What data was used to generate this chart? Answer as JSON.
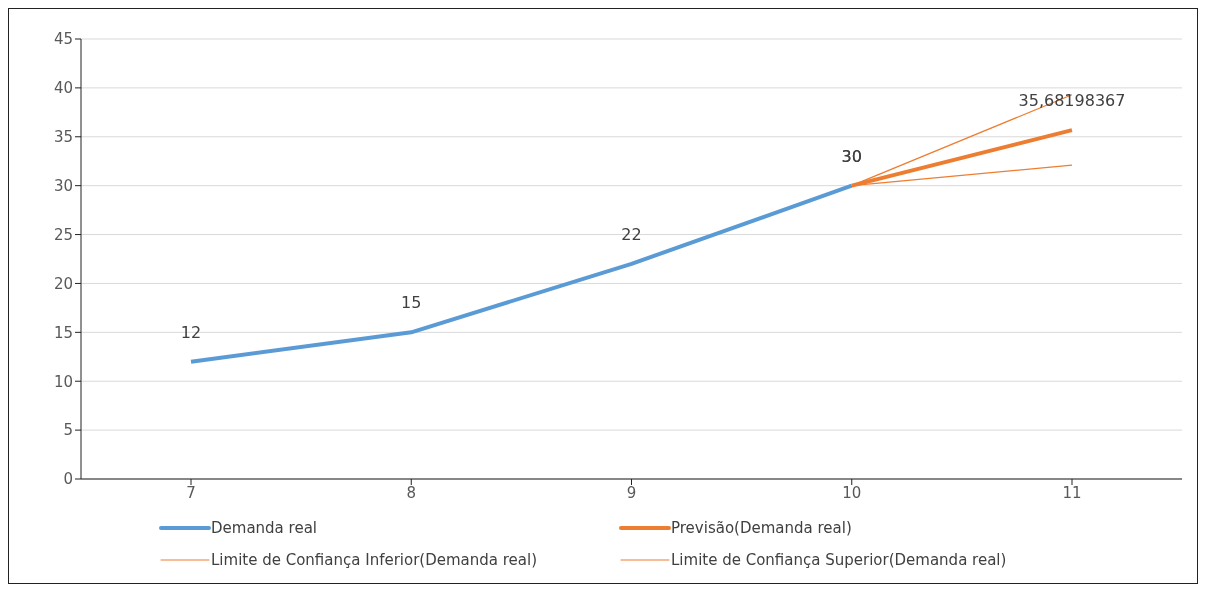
{
  "chart_data": {
    "type": "line",
    "categories": [
      "7",
      "8",
      "9",
      "10",
      "11"
    ],
    "series": [
      {
        "name": "Demanda real",
        "color": "#5b9bd5",
        "values": [
          12,
          15,
          22,
          30,
          null
        ],
        "value_labels": [
          "12",
          "15",
          "22",
          "30",
          null
        ]
      },
      {
        "name": "Previsão(Demanda real)",
        "color": "#ed7d31",
        "values": [
          null,
          null,
          null,
          30,
          35.68198367
        ],
        "value_labels": [
          null,
          null,
          null,
          "30",
          "35,68198367"
        ]
      },
      {
        "name": "Limite de Confiança Inferior(Demanda real)",
        "color": "#ed7d31",
        "values": [
          null,
          null,
          null,
          30,
          32.1
        ]
      },
      {
        "name": "Limite de Confiança Superior(Demanda real)",
        "color": "#ed7d31",
        "values": [
          null,
          null,
          null,
          30,
          39.3
        ]
      }
    ],
    "ylim": [
      0,
      45
    ],
    "yticks": [
      0,
      5,
      10,
      15,
      20,
      25,
      30,
      35,
      40,
      45
    ],
    "grid": "y",
    "legend": "bottom",
    "marker": "none"
  }
}
